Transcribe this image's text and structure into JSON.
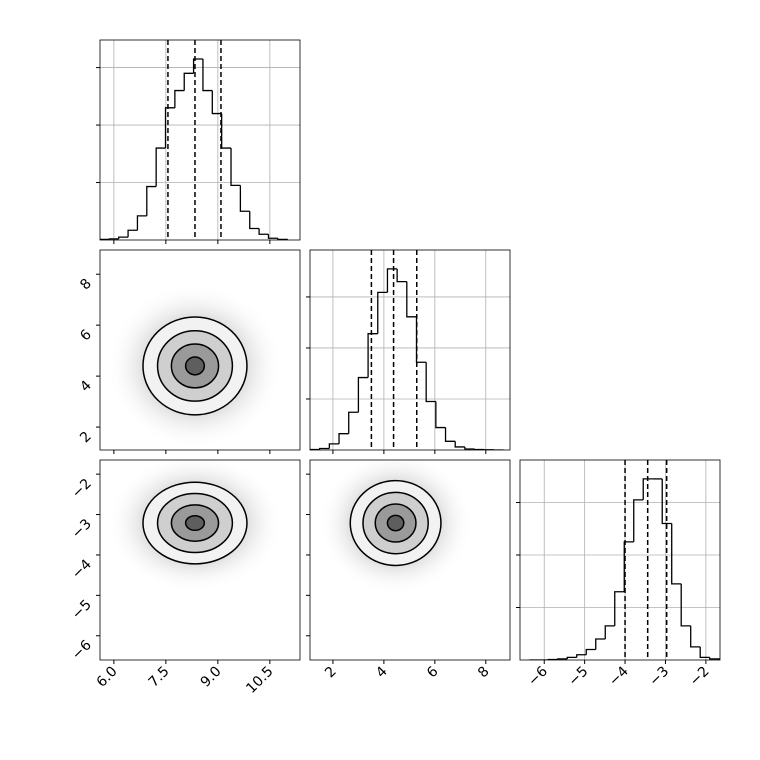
{
  "chart_data": {
    "type": "corner",
    "grid": true,
    "line_color": "#000000",
    "grid_color": "#b0b0b0",
    "contour_fills": [
      "#f2f2f2",
      "#cfcfcf",
      "#9a9a9a",
      "#5e5e5e"
    ],
    "params": [
      {
        "lim": [
          5.6,
          11.37
        ],
        "ticks": [
          {
            "value": 6,
            "label": "6.0"
          },
          7.5,
          {
            "value": 9,
            "label": "9.0"
          },
          10.5
        ]
      },
      {
        "lim": [
          1.1,
          8.95
        ],
        "ticks": [
          2,
          4,
          6,
          8
        ]
      },
      {
        "lim": [
          -6.6,
          -1.65
        ],
        "ticks": [
          {
            "value": -6,
            "label": "−6"
          },
          {
            "value": -5,
            "label": "−5"
          },
          {
            "value": -4,
            "label": "−4"
          },
          {
            "value": -3,
            "label": "−3"
          },
          {
            "value": -2,
            "label": "−2"
          }
        ]
      }
    ],
    "histograms": [
      {
        "bins": [
          5.6,
          5.87,
          6.14,
          6.41,
          6.68,
          6.95,
          7.22,
          7.49,
          7.76,
          8.03,
          8.3,
          8.57,
          8.84,
          9.11,
          9.38,
          9.65,
          9.92,
          10.19,
          10.46,
          10.73,
          11.0
        ],
        "counts": [
          0.01,
          0.02,
          0.05,
          0.17,
          0.42,
          0.93,
          1.6,
          2.3,
          2.6,
          2.9,
          3.15,
          2.6,
          2.2,
          1.6,
          0.95,
          0.5,
          0.2,
          0.1,
          0.03,
          0.01
        ],
        "ylim": [
          0,
          3.48
        ],
        "yticks": [
          1,
          2,
          3
        ],
        "quantiles": [
          7.56,
          8.34,
          9.09
        ]
      },
      {
        "bins": [
          1.1,
          1.48,
          1.86,
          2.24,
          2.62,
          3.0,
          3.38,
          3.76,
          4.14,
          4.52,
          4.9,
          5.28,
          5.66,
          6.04,
          6.42,
          6.8,
          7.18,
          7.56,
          7.94,
          8.32,
          8.7
        ],
        "counts": [
          0.01,
          0.03,
          0.12,
          0.32,
          0.74,
          1.42,
          2.28,
          3.09,
          3.55,
          3.3,
          2.61,
          1.72,
          0.95,
          0.44,
          0.17,
          0.06,
          0.02,
          0.01,
          0.005,
          0
        ],
        "ylim": [
          0,
          3.92
        ],
        "yticks": [
          1,
          2,
          3
        ],
        "quantiles": [
          3.51,
          4.38,
          5.29
        ]
      },
      {
        "bins": [
          -6.37,
          -6.135,
          -5.9,
          -5.665,
          -5.43,
          -5.195,
          -4.96,
          -4.725,
          -4.49,
          -4.255,
          -4.02,
          -3.785,
          -3.55,
          -3.315,
          -3.08,
          -2.845,
          -2.61,
          -2.375,
          -2.14,
          -1.905,
          -1.67
        ],
        "counts": [
          0,
          0,
          0.01,
          0.02,
          0.05,
          0.1,
          0.2,
          0.4,
          0.65,
          1.3,
          2.25,
          3.05,
          3.45,
          3.45,
          2.6,
          1.45,
          0.65,
          0.25,
          0.05,
          0.02
        ],
        "ylim": [
          0,
          3.81
        ],
        "yticks": [
          1,
          2,
          3
        ],
        "quantiles": [
          -4.0,
          -3.44,
          -2.97
        ]
      }
    ],
    "pairs": [
      {
        "center": [
          8.34,
          4.4
        ],
        "contours": [
          {
            "rx": 1.5,
            "ry": 1.92
          },
          {
            "rx": 1.08,
            "ry": 1.38
          },
          {
            "rx": 0.68,
            "ry": 0.86
          },
          {
            "rx": 0.27,
            "ry": 0.35
          }
        ]
      },
      {
        "center": [
          8.34,
          -3.21
        ],
        "contours": [
          {
            "rx": 1.5,
            "ry": 1.01
          },
          {
            "rx": 1.08,
            "ry": 0.73
          },
          {
            "rx": 0.68,
            "ry": 0.45
          },
          {
            "rx": 0.27,
            "ry": 0.18
          }
        ]
      },
      {
        "center": [
          4.46,
          -3.21
        ],
        "contours": [
          {
            "rx": 1.78,
            "ry": 1.05
          },
          {
            "rx": 1.28,
            "ry": 0.76
          },
          {
            "rx": 0.8,
            "ry": 0.47
          },
          {
            "rx": 0.32,
            "ry": 0.19
          }
        ]
      }
    ]
  }
}
